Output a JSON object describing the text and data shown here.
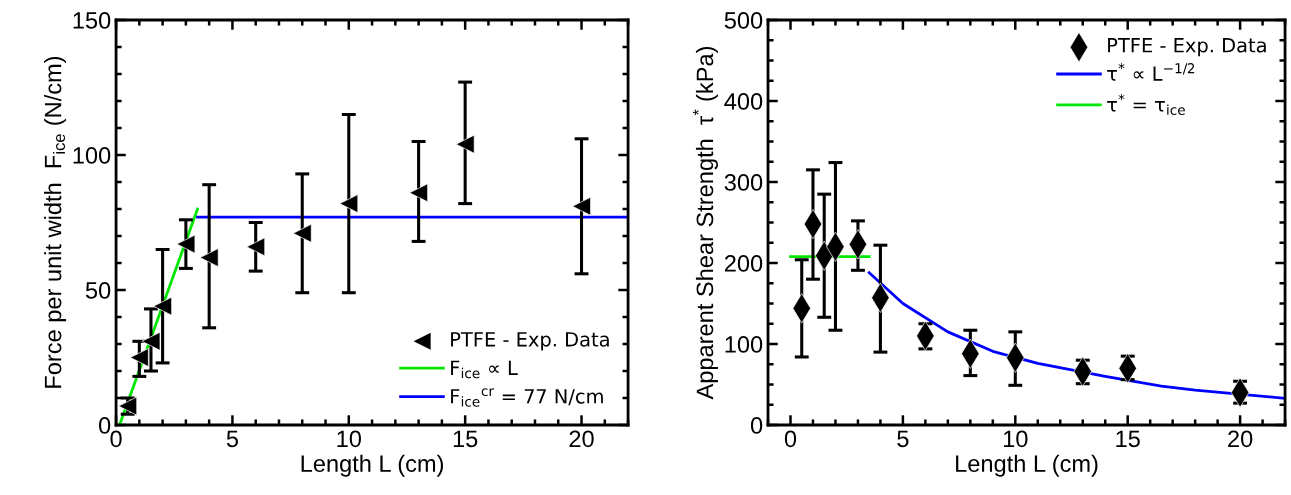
{
  "chart_data": [
    {
      "type": "scatter",
      "xlabel": "Length L (cm)",
      "ylabel": "Force per unit width  F$_{ice}$ (N/cm)",
      "xlim": [
        0,
        22
      ],
      "ylim": [
        0,
        150
      ],
      "xticks": [
        0,
        5,
        10,
        15,
        20
      ],
      "yticks": [
        0,
        50,
        100,
        150
      ],
      "grid": false,
      "legend": "bottom right",
      "series": [
        {
          "name": "PTFE - Exp. Data",
          "marker": "triangle",
          "color": "#000000",
          "x": [
            0.5,
            1,
            1.5,
            2,
            3,
            4,
            6,
            8,
            10,
            13,
            15,
            20
          ],
          "values": [
            7,
            25,
            31,
            44,
            67,
            62,
            66,
            71,
            82,
            86,
            104,
            81
          ],
          "errors": [
            [
              4,
              10
            ],
            [
              18,
              31
            ],
            [
              20,
              43
            ],
            [
              23,
              65
            ],
            [
              58,
              76
            ],
            [
              36,
              89
            ],
            [
              57,
              75
            ],
            [
              49,
              93
            ],
            [
              49,
              115
            ],
            [
              68,
              105
            ],
            [
              82,
              127
            ],
            [
              56,
              106
            ]
          ]
        },
        {
          "name": "F$_{ice}$ ∝ L",
          "type": "line",
          "marker": "none",
          "color": "#00e600",
          "x": [
            0.15,
            3.5
          ],
          "values": [
            0,
            80
          ]
        },
        {
          "name": "F$_{ice}$$^{cr}$ = 77 N/cm",
          "type": "line",
          "marker": "none",
          "color": "#0000ff",
          "x": [
            3.5,
            22
          ],
          "values": [
            77,
            77
          ]
        }
      ]
    },
    {
      "type": "scatter",
      "xlabel": "Length L (cm)",
      "ylabel": "Apparent Shear Strength  τ$^{*}$ (kPa)",
      "xlim": [
        -1,
        22
      ],
      "ylim": [
        0,
        500
      ],
      "xticks": [
        0,
        5,
        10,
        15,
        20
      ],
      "yticks": [
        0,
        100,
        200,
        300,
        400,
        500
      ],
      "grid": false,
      "legend": "top right",
      "series": [
        {
          "name": "PTFE - Exp. Data",
          "marker": "diamond",
          "color": "#000000",
          "x": [
            0.5,
            1,
            1.5,
            2,
            3,
            4,
            6,
            8,
            10,
            13,
            15,
            20
          ],
          "values": [
            144,
            248,
            209,
            220,
            223,
            157,
            110,
            88,
            83,
            66,
            70,
            40
          ],
          "errors": [
            [
              84,
              204
            ],
            [
              180,
              315
            ],
            [
              133,
              285
            ],
            [
              117,
              324
            ],
            [
              191,
              252
            ],
            [
              90,
              222
            ],
            [
              94,
              125
            ],
            [
              61,
              117
            ],
            [
              49,
              115
            ],
            [
              51,
              80
            ],
            [
              56,
              85
            ],
            [
              27,
              54
            ]
          ]
        },
        {
          "name": "τ$^{*}$ ∝ L$^{−1/2}$",
          "type": "line",
          "marker": "none",
          "color": "#0000ff",
          "x": [
            3.5,
            5,
            7,
            9,
            11,
            14,
            16.5,
            18,
            22
          ],
          "values": [
            188,
            150,
            115,
            91,
            76,
            60,
            48,
            43,
            33
          ]
        },
        {
          "name": "τ$^{*}$ = τ$_{ice}$",
          "type": "line",
          "marker": "none",
          "color": "#00e600",
          "x": [
            0,
            3.5
          ],
          "values": [
            208,
            208
          ]
        }
      ]
    }
  ]
}
